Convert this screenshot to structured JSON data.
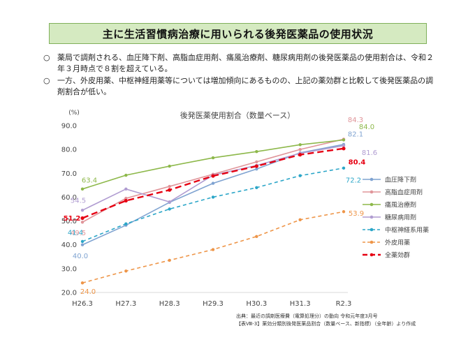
{
  "page": {
    "title": "主に生活習慣病治療に用いられる後発医薬品の使用状況",
    "bullets": [
      {
        "mark": "○",
        "text": "薬局で調剤される、血圧降下剤、高脂血症用剤、痛風治療剤、糖尿病用剤の後発医薬品の使用割合は、令和２年３月時点で８割を超えている。"
      },
      {
        "mark": "○",
        "text": "一方、外皮用薬、中枢神経用薬等については増加傾向にあるものの、上記の薬効群と比較して後発医薬品の調剤割合が低い。"
      }
    ],
    "source_lines": [
      "出典：最近の調剤医療費（電算処理分）の動向 令和元年度3月号",
      "【表Ⅷ-3】薬効分類別後発医薬品割合（数量ベース、新指標）（全年齢）より作成"
    ]
  },
  "chart_data": {
    "type": "line",
    "title": "後発医薬使用割合（数量ベース）",
    "ylabel": "(%)",
    "xlabel": "",
    "categories": [
      "H26.3",
      "H27.3",
      "H28.3",
      "H29.3",
      "H30.3",
      "H31.3",
      "R2.3"
    ],
    "ylim": [
      20,
      90
    ],
    "yticks": [
      "20.0",
      "30.0",
      "40.0",
      "50.0",
      "60.0",
      "70.0",
      "80.0",
      "90.0"
    ],
    "grid": false,
    "legend_position": "right",
    "series": [
      {
        "name": "血圧降下剤",
        "color": "#7fa3d1",
        "dash": false,
        "bold": false,
        "values": [
          40.0,
          48.2,
          57.8,
          65.8,
          71.8,
          78.6,
          82.1
        ],
        "labels": [
          {
            "i": 0,
            "text": "40.0"
          },
          {
            "i": 6,
            "text": "82.1"
          }
        ]
      },
      {
        "name": "高脂血症用剤",
        "color": "#e0959a",
        "dash": false,
        "bold": false,
        "values": [
          49.5,
          59.5,
          64.5,
          69.6,
          74.8,
          80.0,
          84.3
        ],
        "labels": [
          {
            "i": 0,
            "text": "49.5"
          },
          {
            "i": 6,
            "text": "84.3"
          }
        ]
      },
      {
        "name": "痛風治療剤",
        "color": "#8db84a",
        "dash": false,
        "bold": false,
        "values": [
          63.4,
          69.2,
          73.0,
          76.5,
          79.1,
          82.0,
          84.0
        ],
        "labels": [
          {
            "i": 0,
            "text": "63.4"
          },
          {
            "i": 6,
            "text": "84.0"
          }
        ]
      },
      {
        "name": "糖尿病用剤",
        "color": "#b09cd1",
        "dash": false,
        "bold": false,
        "values": [
          54.5,
          63.4,
          58.0,
          69.2,
          73.3,
          78.4,
          81.6
        ],
        "labels": [
          {
            "i": 0,
            "text": "54.5"
          },
          {
            "i": 6,
            "text": "81.6"
          }
        ]
      },
      {
        "name": "中枢神経系用薬",
        "color": "#2ba6c8",
        "dash": true,
        "bold": false,
        "values": [
          41.4,
          48.8,
          55.0,
          60.0,
          64.0,
          69.0,
          72.2
        ],
        "labels": [
          {
            "i": 0,
            "text": "41.4"
          },
          {
            "i": 6,
            "text": "72.2"
          }
        ]
      },
      {
        "name": "外皮用薬",
        "color": "#ee9548",
        "dash": true,
        "bold": false,
        "values": [
          24.0,
          29.0,
          33.5,
          38.0,
          43.5,
          50.5,
          53.9
        ],
        "labels": [
          {
            "i": 0,
            "text": "24.0"
          },
          {
            "i": 6,
            "text": "53.9"
          }
        ]
      },
      {
        "name": "全薬効群",
        "color": "#e60012",
        "dash": true,
        "bold": true,
        "values": [
          51.2,
          58.5,
          63.0,
          68.9,
          73.0,
          77.8,
          80.4
        ],
        "labels": [
          {
            "i": 0,
            "text": "51.2"
          },
          {
            "i": 6,
            "text": "80.4"
          }
        ]
      }
    ]
  }
}
